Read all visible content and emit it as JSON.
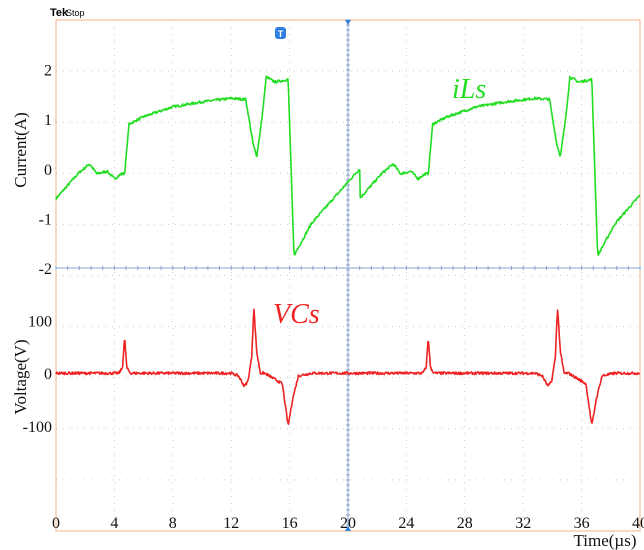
{
  "header": {
    "brand": "Tek",
    "status": "Stop",
    "trigger_marker": "T"
  },
  "chart_data": [
    {
      "type": "line",
      "panel": "top",
      "ylabel": "Current(A)",
      "ytick_labels": [
        "2",
        "1",
        "0",
        "-1",
        "-2"
      ],
      "ytick_values": [
        2,
        1,
        0,
        -1,
        -2
      ],
      "ylim": [
        -2,
        3
      ],
      "xlim": [
        0,
        40
      ],
      "grid": true,
      "series": [
        {
          "name": "iLs",
          "color": "#22dd22",
          "period_us": 20.8,
          "x": [
            0,
            1.5,
            2.3,
            2.8,
            3.5,
            4,
            4.5,
            4.7,
            5.0,
            6,
            8,
            10,
            12,
            13,
            13.5,
            13.75,
            14.1,
            14.4,
            15,
            15.9,
            16.3,
            17.5,
            20.8
          ],
          "y": [
            -0.6,
            -0.1,
            0.1,
            -0.1,
            -0.05,
            -0.2,
            -0.1,
            -0.1,
            0.9,
            1.05,
            1.25,
            1.35,
            1.42,
            1.4,
            0.5,
            0.25,
            1.0,
            1.85,
            1.75,
            1.8,
            -1.75,
            -1.1,
            0.0
          ]
        }
      ]
    },
    {
      "type": "line",
      "panel": "bottom",
      "xlabel": "Time(µs)",
      "ylabel": "Voltage(V)",
      "ytick_labels": [
        "100",
        "0",
        "-100"
      ],
      "ytick_values": [
        100,
        0,
        -100
      ],
      "ylim": [
        -300,
        200
      ],
      "xlim": [
        0,
        40
      ],
      "xticks": [
        0,
        4,
        8,
        12,
        16,
        20,
        24,
        28,
        32,
        36,
        40
      ],
      "xtick_labels": [
        "0",
        "4",
        "8",
        "12",
        "16",
        "20",
        "24",
        "28",
        "32",
        "36",
        "40"
      ],
      "grid": true,
      "series": [
        {
          "name": "VCs",
          "color": "#ee2222",
          "period_us": 20.8,
          "x": [
            0,
            4.3,
            4.55,
            4.7,
            4.85,
            5.1,
            8,
            12,
            12.5,
            12.9,
            13.15,
            13.4,
            13.55,
            13.75,
            14.0,
            14.3,
            15.5,
            15.9,
            16.2,
            16.6,
            17.5,
            20.8
          ],
          "y": [
            0,
            0,
            10,
            68,
            10,
            0,
            0,
            0,
            -5,
            -25,
            -15,
            30,
            125,
            40,
            0,
            0,
            -20,
            -100,
            -50,
            -5,
            0,
            0
          ]
        }
      ]
    }
  ]
}
